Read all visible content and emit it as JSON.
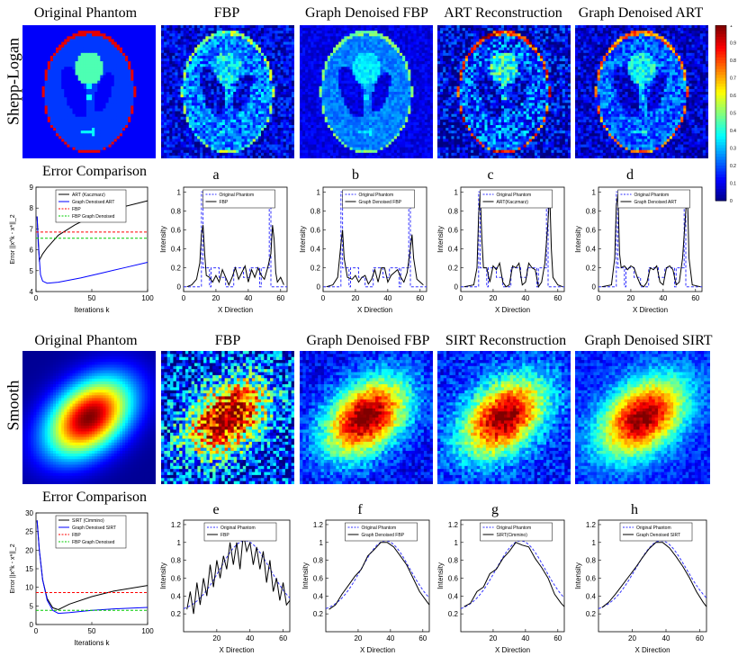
{
  "rows": {
    "shepp": "Shepp-Logan",
    "smooth": "Smooth"
  },
  "panel_titles_top": [
    "Original Phantom",
    "FBP",
    "Graph Denoised FBP",
    "ART Reconstruction",
    "Graph Denoised ART"
  ],
  "panel_titles_bottom": [
    "Original Phantom",
    "FBP",
    "Graph Denoised FBP",
    "SIRT Reconstruction",
    "Graph Denoised SIRT"
  ],
  "colorbar": {
    "ticks": [
      "0",
      "0.1",
      "0.2",
      "0.3",
      "0.4",
      "0.5",
      "0.6",
      "0.7",
      "0.8",
      "0.9",
      "1"
    ]
  },
  "colors": {
    "black": "#000000",
    "blue": "#0000ff",
    "red": "#ff0000",
    "green": "#00cc00",
    "dash_blue": "#3333ff"
  },
  "chart_data": [
    {
      "id": "err1",
      "type": "line",
      "title": "Error Comparison",
      "xlabel": "Iterations k",
      "ylabel": "Error ||x^k - x*||_2",
      "xlim": [
        0,
        100
      ],
      "ylim": [
        4,
        9
      ],
      "xticks": [
        "0",
        "50",
        "100"
      ],
      "yticks": [
        "4",
        "5",
        "6",
        "7",
        "8",
        "9"
      ],
      "series": [
        {
          "name": "ART (Kaczmarz)",
          "color": "#000000",
          "dash": false,
          "x": [
            1,
            3,
            6,
            10,
            20,
            35,
            50,
            70,
            100
          ],
          "y": [
            7.6,
            5.5,
            5.8,
            6.1,
            6.7,
            7.2,
            7.6,
            7.95,
            8.35
          ]
        },
        {
          "name": "Graph Denoised ART",
          "color": "#0000ff",
          "dash": false,
          "x": [
            1,
            2,
            4,
            6,
            10,
            20,
            40,
            60,
            80,
            100
          ],
          "y": [
            7.6,
            6.3,
            4.8,
            4.5,
            4.4,
            4.45,
            4.65,
            4.9,
            5.15,
            5.4
          ]
        },
        {
          "name": "FBP",
          "color": "#ff0000",
          "dash": true,
          "x": [
            0,
            100
          ],
          "y": [
            6.85,
            6.85
          ]
        },
        {
          "name": "FBP Graph Denoised",
          "color": "#00cc00",
          "dash": true,
          "x": [
            0,
            100
          ],
          "y": [
            6.55,
            6.55
          ]
        }
      ]
    },
    {
      "id": "a",
      "type": "line",
      "title": "a",
      "xlabel": "X Direction",
      "ylabel": "Intensity",
      "xlim": [
        0,
        64
      ],
      "ylim": [
        -0.05,
        1.05
      ],
      "xticks": [
        "0",
        "20",
        "40",
        "60"
      ],
      "yticks": [
        "0",
        "0.2",
        "0.4",
        "0.6",
        "0.8",
        "1"
      ],
      "series": [
        {
          "name": "Original Phantom",
          "color": "#3333ff",
          "dash": true,
          "phantom": true
        },
        {
          "name": "FBP",
          "color": "#000000",
          "dash": false,
          "x": [
            2,
            5,
            8,
            10,
            11,
            12,
            13,
            14,
            16,
            18,
            20,
            22,
            24,
            26,
            28,
            30,
            32,
            34,
            36,
            38,
            40,
            42,
            44,
            46,
            48,
            50,
            52,
            54,
            55,
            56,
            57,
            58,
            60,
            62
          ],
          "y": [
            0,
            0.02,
            0.08,
            0.25,
            0.55,
            0.65,
            0.35,
            0.12,
            0.1,
            0.05,
            0.12,
            0.05,
            0.18,
            0.1,
            0.02,
            0.1,
            0.2,
            0.08,
            0.15,
            0.22,
            0.05,
            0.18,
            0.1,
            0.2,
            0.12,
            0.08,
            0.2,
            0.35,
            0.65,
            0.5,
            0.15,
            0.05,
            0.1,
            0.02
          ]
        }
      ]
    },
    {
      "id": "b",
      "type": "line",
      "title": "b",
      "xlabel": "X Direction",
      "ylabel": "Intensity",
      "xlim": [
        0,
        64
      ],
      "ylim": [
        -0.05,
        1.05
      ],
      "xticks": [
        "0",
        "20",
        "40",
        "60"
      ],
      "yticks": [
        "0",
        "0.2",
        "0.4",
        "0.6",
        "0.8",
        "1"
      ],
      "series": [
        {
          "name": "Original Phantom",
          "color": "#3333ff",
          "dash": true,
          "phantom": true
        },
        {
          "name": "Graph Denoised FBP",
          "color": "#000000",
          "dash": false,
          "x": [
            2,
            6,
            9,
            11,
            12,
            13,
            15,
            18,
            20,
            22,
            24,
            26,
            28,
            30,
            32,
            34,
            36,
            38,
            40,
            42,
            44,
            46,
            48,
            50,
            52,
            54,
            55,
            56,
            58,
            62
          ],
          "y": [
            0,
            0.02,
            0.1,
            0.45,
            0.6,
            0.3,
            0.1,
            0.08,
            0.12,
            0.05,
            0.1,
            0.12,
            0.03,
            0.08,
            0.18,
            0.05,
            0.2,
            0.2,
            0.05,
            0.12,
            0.15,
            0.18,
            0.1,
            0.05,
            0.15,
            0.4,
            0.55,
            0.3,
            0.08,
            0.02
          ]
        }
      ]
    },
    {
      "id": "c",
      "type": "line",
      "title": "c",
      "xlabel": "X Direction",
      "ylabel": "Intensity",
      "xlim": [
        0,
        64
      ],
      "ylim": [
        -0.05,
        1.05
      ],
      "xticks": [
        "0",
        "20",
        "40",
        "60"
      ],
      "yticks": [
        "0",
        "0.2",
        "0.4",
        "0.6",
        "0.8",
        "1"
      ],
      "series": [
        {
          "name": "Original Phantom",
          "color": "#3333ff",
          "dash": true,
          "phantom": true
        },
        {
          "name": "ART(Kaczmarz)",
          "color": "#000000",
          "dash": false,
          "x": [
            2,
            8,
            10,
            11,
            12,
            13,
            14,
            16,
            18,
            20,
            22,
            24,
            26,
            28,
            30,
            32,
            34,
            36,
            38,
            40,
            42,
            44,
            46,
            48,
            50,
            52,
            54,
            55,
            56,
            57,
            60,
            63
          ],
          "y": [
            0,
            0.02,
            0.2,
            0.75,
            1.0,
            0.5,
            0.2,
            0.2,
            0.05,
            0.22,
            0.18,
            0.25,
            0.05,
            0,
            0.02,
            0.22,
            0.2,
            0.25,
            0.02,
            0.05,
            0.25,
            0.2,
            0.18,
            0,
            0.05,
            0.25,
            0.7,
            1.0,
            0.4,
            0.1,
            0.02,
            0
          ]
        }
      ]
    },
    {
      "id": "d",
      "type": "line",
      "title": "d",
      "xlabel": "X Direction",
      "ylabel": "Intensity",
      "xlim": [
        0,
        64
      ],
      "ylim": [
        -0.05,
        1.05
      ],
      "xticks": [
        "0",
        "20",
        "40",
        "60"
      ],
      "yticks": [
        "0",
        "0.2",
        "0.4",
        "0.6",
        "0.8",
        "1"
      ],
      "series": [
        {
          "name": "Original Phantom",
          "color": "#3333ff",
          "dash": true,
          "phantom": true
        },
        {
          "name": "Graph Denoised ART",
          "color": "#000000",
          "dash": false,
          "x": [
            2,
            8,
            10,
            11,
            12,
            13,
            14,
            16,
            18,
            20,
            22,
            24,
            26,
            28,
            30,
            32,
            34,
            36,
            38,
            40,
            42,
            44,
            46,
            48,
            50,
            52,
            54,
            55,
            56,
            58,
            63
          ],
          "y": [
            0,
            0.02,
            0.3,
            0.85,
            0.98,
            0.35,
            0.2,
            0.22,
            0.18,
            0.22,
            0.2,
            0.1,
            0.02,
            0,
            0.05,
            0.2,
            0.18,
            0.22,
            0.05,
            0.02,
            0.2,
            0.22,
            0.18,
            0.02,
            0.05,
            0.3,
            0.8,
            0.98,
            0.3,
            0.02,
            0
          ]
        }
      ]
    },
    {
      "id": "err2",
      "type": "line",
      "title": "Error Comparison",
      "xlabel": "Iterations k",
      "ylabel": "Error ||x^k - x*||_2",
      "xlim": [
        0,
        100
      ],
      "ylim": [
        0,
        30
      ],
      "xticks": [
        "0",
        "50",
        "100"
      ],
      "yticks": [
        "0",
        "5",
        "10",
        "15",
        "20",
        "25",
        "30"
      ],
      "series": [
        {
          "name": "SIRT (Cimmino)",
          "color": "#000000",
          "dash": false,
          "x": [
            1,
            3,
            6,
            10,
            15,
            20,
            30,
            50,
            70,
            100
          ],
          "y": [
            28,
            20,
            12,
            7,
            4.5,
            4.0,
            5.5,
            7.5,
            9.0,
            10.5
          ]
        },
        {
          "name": "Graph Denoised SIRT",
          "color": "#0000ff",
          "dash": false,
          "x": [
            1,
            3,
            6,
            10,
            15,
            20,
            30,
            50,
            70,
            100
          ],
          "y": [
            28,
            20,
            12,
            6.5,
            3.8,
            3.0,
            3.2,
            3.8,
            4.2,
            4.6
          ]
        },
        {
          "name": "FBP",
          "color": "#ff0000",
          "dash": true,
          "x": [
            0,
            100
          ],
          "y": [
            8.6,
            8.6
          ]
        },
        {
          "name": "FBP Graph Denoised",
          "color": "#00cc00",
          "dash": true,
          "x": [
            0,
            100
          ],
          "y": [
            3.8,
            3.8
          ]
        }
      ]
    },
    {
      "id": "e",
      "type": "line",
      "title": "e",
      "xlabel": "X Direction",
      "ylabel": "Intensity",
      "xlim": [
        0,
        64
      ],
      "ylim": [
        0,
        1.25
      ],
      "xticks": [
        "20",
        "40",
        "60"
      ],
      "yticks": [
        "0.2",
        "0.4",
        "0.6",
        "0.8",
        "1",
        "1.2"
      ],
      "series": [
        {
          "name": "Original Phantom",
          "color": "#3333ff",
          "dash": true,
          "gauss": true
        },
        {
          "name": "FBP",
          "color": "#000000",
          "dash": false,
          "x": [
            2,
            4,
            6,
            8,
            10,
            12,
            14,
            16,
            18,
            20,
            22,
            24,
            26,
            28,
            30,
            32,
            34,
            36,
            38,
            40,
            42,
            44,
            46,
            48,
            50,
            52,
            54,
            56,
            58,
            60,
            62,
            64
          ],
          "y": [
            0.25,
            0.45,
            0.2,
            0.55,
            0.3,
            0.6,
            0.4,
            0.75,
            0.5,
            0.8,
            0.6,
            0.85,
            0.7,
            1.0,
            0.75,
            1.0,
            0.7,
            1.1,
            0.9,
            1.0,
            0.75,
            0.95,
            0.7,
            0.9,
            0.55,
            0.8,
            0.45,
            0.6,
            0.35,
            0.55,
            0.3,
            0.35
          ]
        }
      ]
    },
    {
      "id": "f",
      "type": "line",
      "title": "f",
      "xlabel": "X Direction",
      "ylabel": "Intensity",
      "xlim": [
        0,
        64
      ],
      "ylim": [
        0,
        1.25
      ],
      "xticks": [
        "20",
        "40",
        "60"
      ],
      "yticks": [
        "0.2",
        "0.4",
        "0.6",
        "0.8",
        "1",
        "1.2"
      ],
      "series": [
        {
          "name": "Original Phantom",
          "color": "#3333ff",
          "dash": true,
          "gauss": true
        },
        {
          "name": "Graph Denoised FBP",
          "color": "#000000",
          "dash": false,
          "x": [
            2,
            6,
            10,
            14,
            18,
            22,
            26,
            30,
            34,
            38,
            42,
            46,
            50,
            54,
            58,
            62,
            64
          ],
          "y": [
            0.25,
            0.3,
            0.42,
            0.52,
            0.62,
            0.7,
            0.85,
            0.92,
            1.0,
            1.0,
            0.95,
            0.85,
            0.75,
            0.6,
            0.45,
            0.35,
            0.3
          ]
        }
      ]
    },
    {
      "id": "g",
      "type": "line",
      "title": "g",
      "xlabel": "X Direction",
      "ylabel": "Intensity",
      "xlim": [
        0,
        64
      ],
      "ylim": [
        0,
        1.25
      ],
      "xticks": [
        "20",
        "40",
        "60"
      ],
      "yticks": [
        "0.2",
        "0.4",
        "0.6",
        "0.8",
        "1",
        "1.2"
      ],
      "series": [
        {
          "name": "Original Phantom",
          "color": "#3333ff",
          "dash": true,
          "gauss": true
        },
        {
          "name": "SIRT(Cimmino)",
          "color": "#000000",
          "dash": false,
          "x": [
            2,
            6,
            10,
            14,
            18,
            22,
            26,
            30,
            34,
            38,
            42,
            46,
            50,
            54,
            58,
            62,
            64
          ],
          "y": [
            0.28,
            0.32,
            0.45,
            0.5,
            0.65,
            0.7,
            0.82,
            0.9,
            1.0,
            0.97,
            0.95,
            0.82,
            0.72,
            0.6,
            0.42,
            0.32,
            0.28
          ]
        }
      ]
    },
    {
      "id": "h",
      "type": "line",
      "title": "h",
      "xlabel": "X Direction",
      "ylabel": "Intensity",
      "xlim": [
        0,
        64
      ],
      "ylim": [
        0,
        1.25
      ],
      "xticks": [
        "20",
        "40",
        "60"
      ],
      "yticks": [
        "0.2",
        "0.4",
        "0.6",
        "0.8",
        "1",
        "1.2"
      ],
      "series": [
        {
          "name": "Original Phantom",
          "color": "#3333ff",
          "dash": true,
          "gauss": true
        },
        {
          "name": "Graph Denoised SIRT",
          "color": "#000000",
          "dash": false,
          "x": [
            2,
            6,
            10,
            14,
            18,
            22,
            26,
            30,
            34,
            38,
            42,
            46,
            50,
            54,
            58,
            62,
            64
          ],
          "y": [
            0.27,
            0.33,
            0.42,
            0.52,
            0.62,
            0.72,
            0.83,
            0.93,
            1.0,
            1.0,
            0.94,
            0.84,
            0.73,
            0.6,
            0.45,
            0.33,
            0.28
          ]
        }
      ]
    }
  ]
}
